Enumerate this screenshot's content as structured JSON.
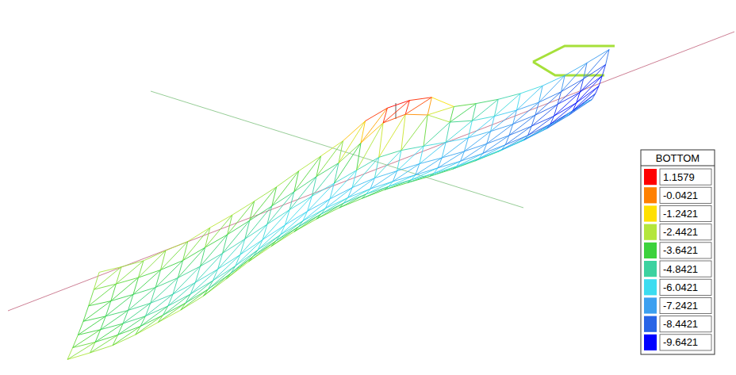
{
  "chart_data": {
    "type": "surface",
    "color_bar": {
      "title": "BOTTOM",
      "ticks": [
        1.1579,
        -0.0421,
        -1.2421,
        -2.4421,
        -3.6421,
        -4.8421,
        -6.0421,
        -7.2421,
        -8.4421,
        -9.6421
      ],
      "colors": [
        "#ff0000",
        "#ff8000",
        "#ffe000",
        "#b4e63c",
        "#3cd23c",
        "#3cd2a0",
        "#3cdcf0",
        "#3ca0f0",
        "#2864e6",
        "#0000ff"
      ]
    },
    "cells": [
      [
        -2.4,
        -3.0,
        -3.4,
        -3.6,
        -3.4,
        -3.0,
        -2.4
      ],
      [
        -2.6,
        -3.4,
        -3.8,
        -4.0,
        -3.8,
        -3.2,
        -2.6
      ],
      [
        -2.8,
        -3.6,
        -4.2,
        -4.4,
        -4.0,
        -3.4,
        -2.8
      ],
      [
        -2.6,
        -3.8,
        -4.6,
        -4.8,
        -4.4,
        -3.6,
        -2.4
      ],
      [
        -2.4,
        -3.8,
        -4.8,
        -5.2,
        -4.6,
        -3.8,
        -2.6
      ],
      [
        -2.6,
        -4.0,
        -5.0,
        -5.4,
        -4.8,
        -3.6,
        -2.2
      ],
      [
        -2.8,
        -4.2,
        -5.2,
        -5.6,
        -5.0,
        -3.8,
        -2.4
      ],
      [
        -2.6,
        -4.2,
        -5.4,
        -5.8,
        -5.2,
        -4.0,
        -2.6
      ],
      [
        -2.4,
        -4.0,
        -5.4,
        -6.0,
        -5.4,
        -4.2,
        -2.8
      ],
      [
        -2.6,
        -4.2,
        -5.6,
        -6.2,
        -5.6,
        -4.4,
        -2.6
      ],
      [
        -2.8,
        -4.4,
        -5.8,
        -6.4,
        -5.8,
        -4.2,
        -2.4
      ],
      [
        -3.0,
        -4.6,
        -6.0,
        -6.6,
        -5.8,
        -4.0,
        -1.8
      ],
      [
        -3.2,
        -4.8,
        -6.2,
        -6.6,
        -5.4,
        -2.0,
        0.2
      ],
      [
        -3.4,
        -5.0,
        -6.4,
        -6.6,
        -4.6,
        0.4,
        1.1
      ],
      [
        -3.4,
        -5.2,
        -6.6,
        -6.8,
        -4.8,
        0.6,
        1.15
      ],
      [
        -3.6,
        -5.4,
        -6.8,
        -6.8,
        -5.4,
        -1.0,
        0.4
      ],
      [
        -3.8,
        -5.6,
        -6.8,
        -7.0,
        -6.0,
        -4.0,
        -3.0
      ],
      [
        -4.0,
        -5.8,
        -7.0,
        -7.2,
        -6.6,
        -5.2,
        -3.8
      ],
      [
        -4.2,
        -6.0,
        -7.2,
        -7.4,
        -7.0,
        -6.0,
        -4.6
      ],
      [
        -4.6,
        -6.4,
        -7.6,
        -7.8,
        -7.6,
        -6.8,
        -5.4
      ],
      [
        -5.0,
        -7.0,
        -8.2,
        -8.4,
        -8.2,
        -7.6,
        -6.2
      ],
      [
        -5.6,
        -7.6,
        -8.8,
        -9.2,
        -8.8,
        -8.2,
        -6.8
      ],
      [
        -6.0,
        -8.0,
        -9.2,
        -9.6,
        -9.4,
        -8.6,
        -7.2
      ],
      [
        -6.4,
        -8.2,
        -9.0,
        -9.4,
        -9.2,
        -8.8,
        -7.6
      ]
    ]
  }
}
